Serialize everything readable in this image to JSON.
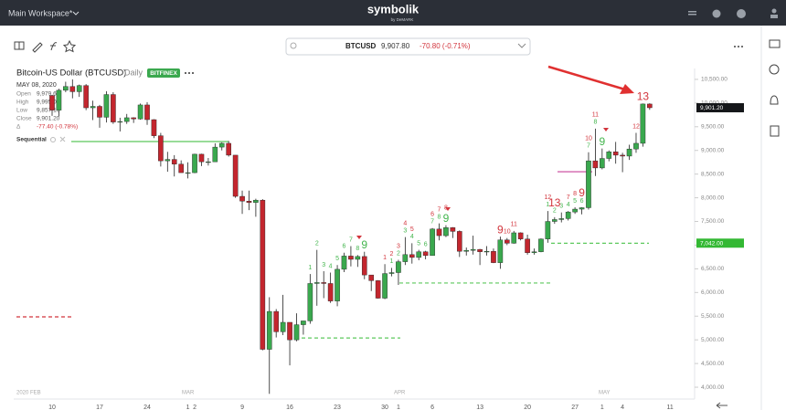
{
  "header": {
    "workspace": "Main Workspace*",
    "logo": "symbolik",
    "logo_sub": "by DeMARK"
  },
  "quote": {
    "symbol": "BTCUSD",
    "price": "9,907.80",
    "change": "-70.80 (-0.71%)"
  },
  "chart_data": {
    "type": "candlestick",
    "title": "Bitcoin-US Dollar (BTCUSD)",
    "interval": "Daily",
    "exchange": "BITFINEX",
    "info": {
      "date": "MAY 08, 2020",
      "rows": [
        {
          "label": "Open",
          "value": "9,979.60"
        },
        {
          "label": "High",
          "value": "9,995.00"
        },
        {
          "label": "Low",
          "value": "9,857.10"
        },
        {
          "label": "Close",
          "value": "9,901.20"
        },
        {
          "label": "Δ",
          "value": "-77.40 (-0.78%)"
        }
      ]
    },
    "indicator": "Sequential",
    "categories": [
      "10",
      null,
      null,
      null,
      null,
      null,
      null,
      "17",
      null,
      null,
      null,
      null,
      null,
      null,
      "24",
      null,
      null,
      null,
      null,
      null,
      "1",
      "2",
      null,
      null,
      null,
      null,
      null,
      null,
      "9",
      null,
      null,
      null,
      null,
      null,
      null,
      "16",
      null,
      null,
      null,
      null,
      null,
      null,
      "23",
      null,
      null,
      null,
      null,
      null,
      null,
      "30",
      null,
      "1",
      null,
      null,
      null,
      null,
      "6",
      null,
      null,
      null,
      null,
      null,
      null,
      "13",
      null,
      null,
      null,
      null,
      null,
      null,
      "20",
      null,
      null,
      null,
      null,
      null,
      null,
      "27",
      null,
      null,
      null,
      "1",
      null,
      null,
      "4",
      null,
      null,
      null,
      null,
      null,
      null,
      "11"
    ],
    "month_labels": [
      "2020 FEB",
      "MAR",
      "APR",
      "MAY"
    ],
    "open": [
      10160,
      9850,
      10270,
      10350,
      10240,
      10370,
      9900,
      9930,
      9700,
      10180,
      9600,
      9610,
      9690,
      9665,
      9960,
      9650,
      9310,
      8780,
      8810,
      8710,
      8530,
      8530,
      8920,
      8760,
      8760,
      9070,
      9150,
      8900,
      8030,
      7930,
      7900,
      7950,
      4800,
      5600,
      5170,
      5370,
      5000,
      5320,
      5400,
      6190,
      6210,
      6190,
      5820,
      6490,
      6770,
      6700,
      6760,
      6370,
      6250,
      5880,
      6400,
      6420,
      6650,
      6800,
      6740,
      6860,
      6780,
      7340,
      7200,
      7370,
      7290,
      6870,
      6890,
      6910,
      6860,
      6870,
      6630,
      7110,
      7040,
      7260,
      7130,
      6840,
      6860,
      7130,
      7500,
      7540,
      7560,
      7700,
      7760,
      7790,
      8780,
      8630,
      8830,
      8970,
      8900,
      8880,
      9030,
      9150,
      9979.6,
      null,
      null,
      null
    ],
    "high": [
      10170,
      10300,
      10450,
      10500,
      10390,
      10400,
      10050,
      9960,
      10250,
      10230,
      9690,
      9770,
      9700,
      9990,
      10020,
      9660,
      9370,
      8970,
      8900,
      8790,
      8750,
      8930,
      8930,
      8840,
      9150,
      9170,
      9200,
      8900,
      8150,
      8150,
      7980,
      7970,
      5900,
      5650,
      5950,
      5370,
      5560,
      5400,
      6390,
      6900,
      6450,
      6420,
      6580,
      6840,
      6980,
      6790,
      6860,
      6370,
      6260,
      6600,
      6520,
      6690,
      7170,
      7040,
      6900,
      6880,
      7360,
      7460,
      7420,
      7380,
      7310,
      6950,
      7200,
      6920,
      6980,
      6930,
      7180,
      7150,
      7300,
      7270,
      7220,
      6930,
      7140,
      7720,
      7590,
      7690,
      7720,
      7800,
      7800,
      8960,
      9460,
      9040,
      9000,
      9180,
      8950,
      9120,
      9370,
      9990,
      9995,
      null,
      null,
      null
    ],
    "low": [
      9730,
      9720,
      10230,
      10100,
      10130,
      9850,
      9640,
      9480,
      9590,
      9560,
      9400,
      9560,
      9580,
      9650,
      9540,
      9260,
      8660,
      8550,
      8450,
      8530,
      8410,
      8520,
      8670,
      8680,
      8760,
      9000,
      8870,
      8000,
      7660,
      7740,
      7600,
      4780,
      3860,
      5050,
      5100,
      4460,
      4970,
      5110,
      5340,
      5720,
      5880,
      5780,
      5710,
      6430,
      6550,
      6540,
      6280,
      6030,
      5870,
      5860,
      6340,
      6160,
      6580,
      6610,
      6680,
      6700,
      6780,
      7100,
      7170,
      7150,
      6750,
      6780,
      6800,
      6580,
      6780,
      6620,
      6500,
      7000,
      7030,
      7100,
      6800,
      6800,
      6850,
      7050,
      7450,
      7480,
      7520,
      7660,
      7650,
      7750,
      8460,
      8600,
      8770,
      8720,
      8540,
      8800,
      8950,
      9080,
      9857.1,
      null,
      null,
      null
    ],
    "close": [
      9850,
      10270,
      10350,
      10240,
      10370,
      9900,
      9930,
      9700,
      10180,
      9600,
      9610,
      9690,
      9665,
      9960,
      9650,
      9310,
      8780,
      8810,
      8710,
      8530,
      8530,
      8920,
      8760,
      8760,
      9070,
      9150,
      8900,
      8030,
      7930,
      7900,
      7950,
      4800,
      5600,
      5170,
      5370,
      5000,
      5320,
      5400,
      6190,
      6210,
      6190,
      5820,
      6490,
      6770,
      6700,
      6760,
      6370,
      6250,
      5880,
      6400,
      6420,
      6650,
      6800,
      6740,
      6860,
      6780,
      7340,
      7200,
      7370,
      7290,
      6870,
      6890,
      6910,
      6860,
      6870,
      6630,
      7110,
      7040,
      7260,
      7130,
      6840,
      6860,
      7130,
      7500,
      7540,
      7560,
      7700,
      7760,
      7790,
      8780,
      8630,
      8830,
      8970,
      8900,
      8880,
      9030,
      9150,
      9980,
      9901.2,
      null,
      null,
      null
    ],
    "setup": [
      null,
      null,
      null,
      null,
      null,
      null,
      null,
      null,
      null,
      null,
      null,
      null,
      null,
      null,
      null,
      null,
      null,
      null,
      null,
      null,
      null,
      null,
      null,
      null,
      null,
      null,
      null,
      null,
      null,
      null,
      null,
      null,
      null,
      null,
      null,
      null,
      null,
      null,
      1,
      2,
      3,
      4,
      5,
      6,
      7,
      8,
      9,
      null,
      null,
      null,
      1,
      2,
      3,
      4,
      5,
      6,
      7,
      8,
      9,
      null,
      null,
      null,
      null,
      null,
      null,
      null,
      null,
      null,
      null,
      null,
      null,
      null,
      null,
      1,
      2,
      3,
      4,
      5,
      6,
      7,
      8,
      9,
      null,
      null,
      null,
      null,
      null,
      null,
      null,
      null,
      null,
      null
    ],
    "countdown": [
      null,
      null,
      null,
      null,
      null,
      null,
      null,
      null,
      null,
      null,
      null,
      null,
      null,
      null,
      null,
      null,
      null,
      null,
      null,
      null,
      null,
      null,
      null,
      null,
      null,
      null,
      null,
      null,
      null,
      null,
      null,
      null,
      null,
      null,
      null,
      null,
      null,
      null,
      null,
      null,
      null,
      null,
      null,
      null,
      null,
      null,
      null,
      null,
      null,
      1,
      2,
      3,
      4,
      5,
      null,
      null,
      6,
      7,
      8,
      null,
      null,
      null,
      null,
      null,
      null,
      null,
      9,
      10,
      11,
      null,
      null,
      null,
      null,
      12,
      13,
      null,
      7,
      8,
      9,
      10,
      11,
      null,
      null,
      null,
      null,
      null,
      12,
      13,
      null,
      null,
      null,
      null
    ],
    "colors": {
      "up": "#3aa84e",
      "down": "#c3262e",
      "setup": "#43b54d",
      "countdown": "#d2343c"
    },
    "ylim": [
      3750,
      10730
    ],
    "yticks": [
      {
        "value": 4000,
        "label": "4,000.00"
      },
      {
        "value": 4500,
        "label": "4,500.00"
      },
      {
        "value": 5000,
        "label": "5,000.00"
      },
      {
        "value": 5500,
        "label": "5,500.00"
      },
      {
        "value": 6000,
        "label": "6,000.00"
      },
      {
        "value": 6500,
        "label": "6,500.00"
      },
      {
        "value": 7000,
        "label": "7,000.00"
      },
      {
        "value": 7500,
        "label": "7,500.00"
      },
      {
        "value": 8000,
        "label": "8,000.00"
      },
      {
        "value": 8500,
        "label": "8,500.00"
      },
      {
        "value": 9000,
        "label": "9,000.00"
      },
      {
        "value": 9500,
        "label": "9,500.00"
      },
      {
        "value": 10000,
        "label": "10,000.00"
      },
      {
        "value": 10500,
        "label": "10,500.00"
      }
    ],
    "levels": [
      {
        "value": 9188,
        "color": "#5cc85c",
        "dashed": false
      },
      {
        "value": 5040,
        "color": "#5cc85c",
        "dashed": true
      },
      {
        "value": 6200,
        "color": "#5cc85c",
        "dashed": true
      },
      {
        "value": 7040,
        "color": "#5cc85c",
        "dashed": true
      },
      {
        "value": 8550,
        "color": "#c8409a",
        "dashed": false
      },
      {
        "value": 5485,
        "color": "#d2343c",
        "dashed": true
      }
    ],
    "price_tags": [
      {
        "value": 9901.2,
        "label": "9,901.20",
        "color": "#15171a"
      },
      {
        "value": 7042,
        "label": "7,042.00",
        "color": "#33b833"
      }
    ]
  }
}
